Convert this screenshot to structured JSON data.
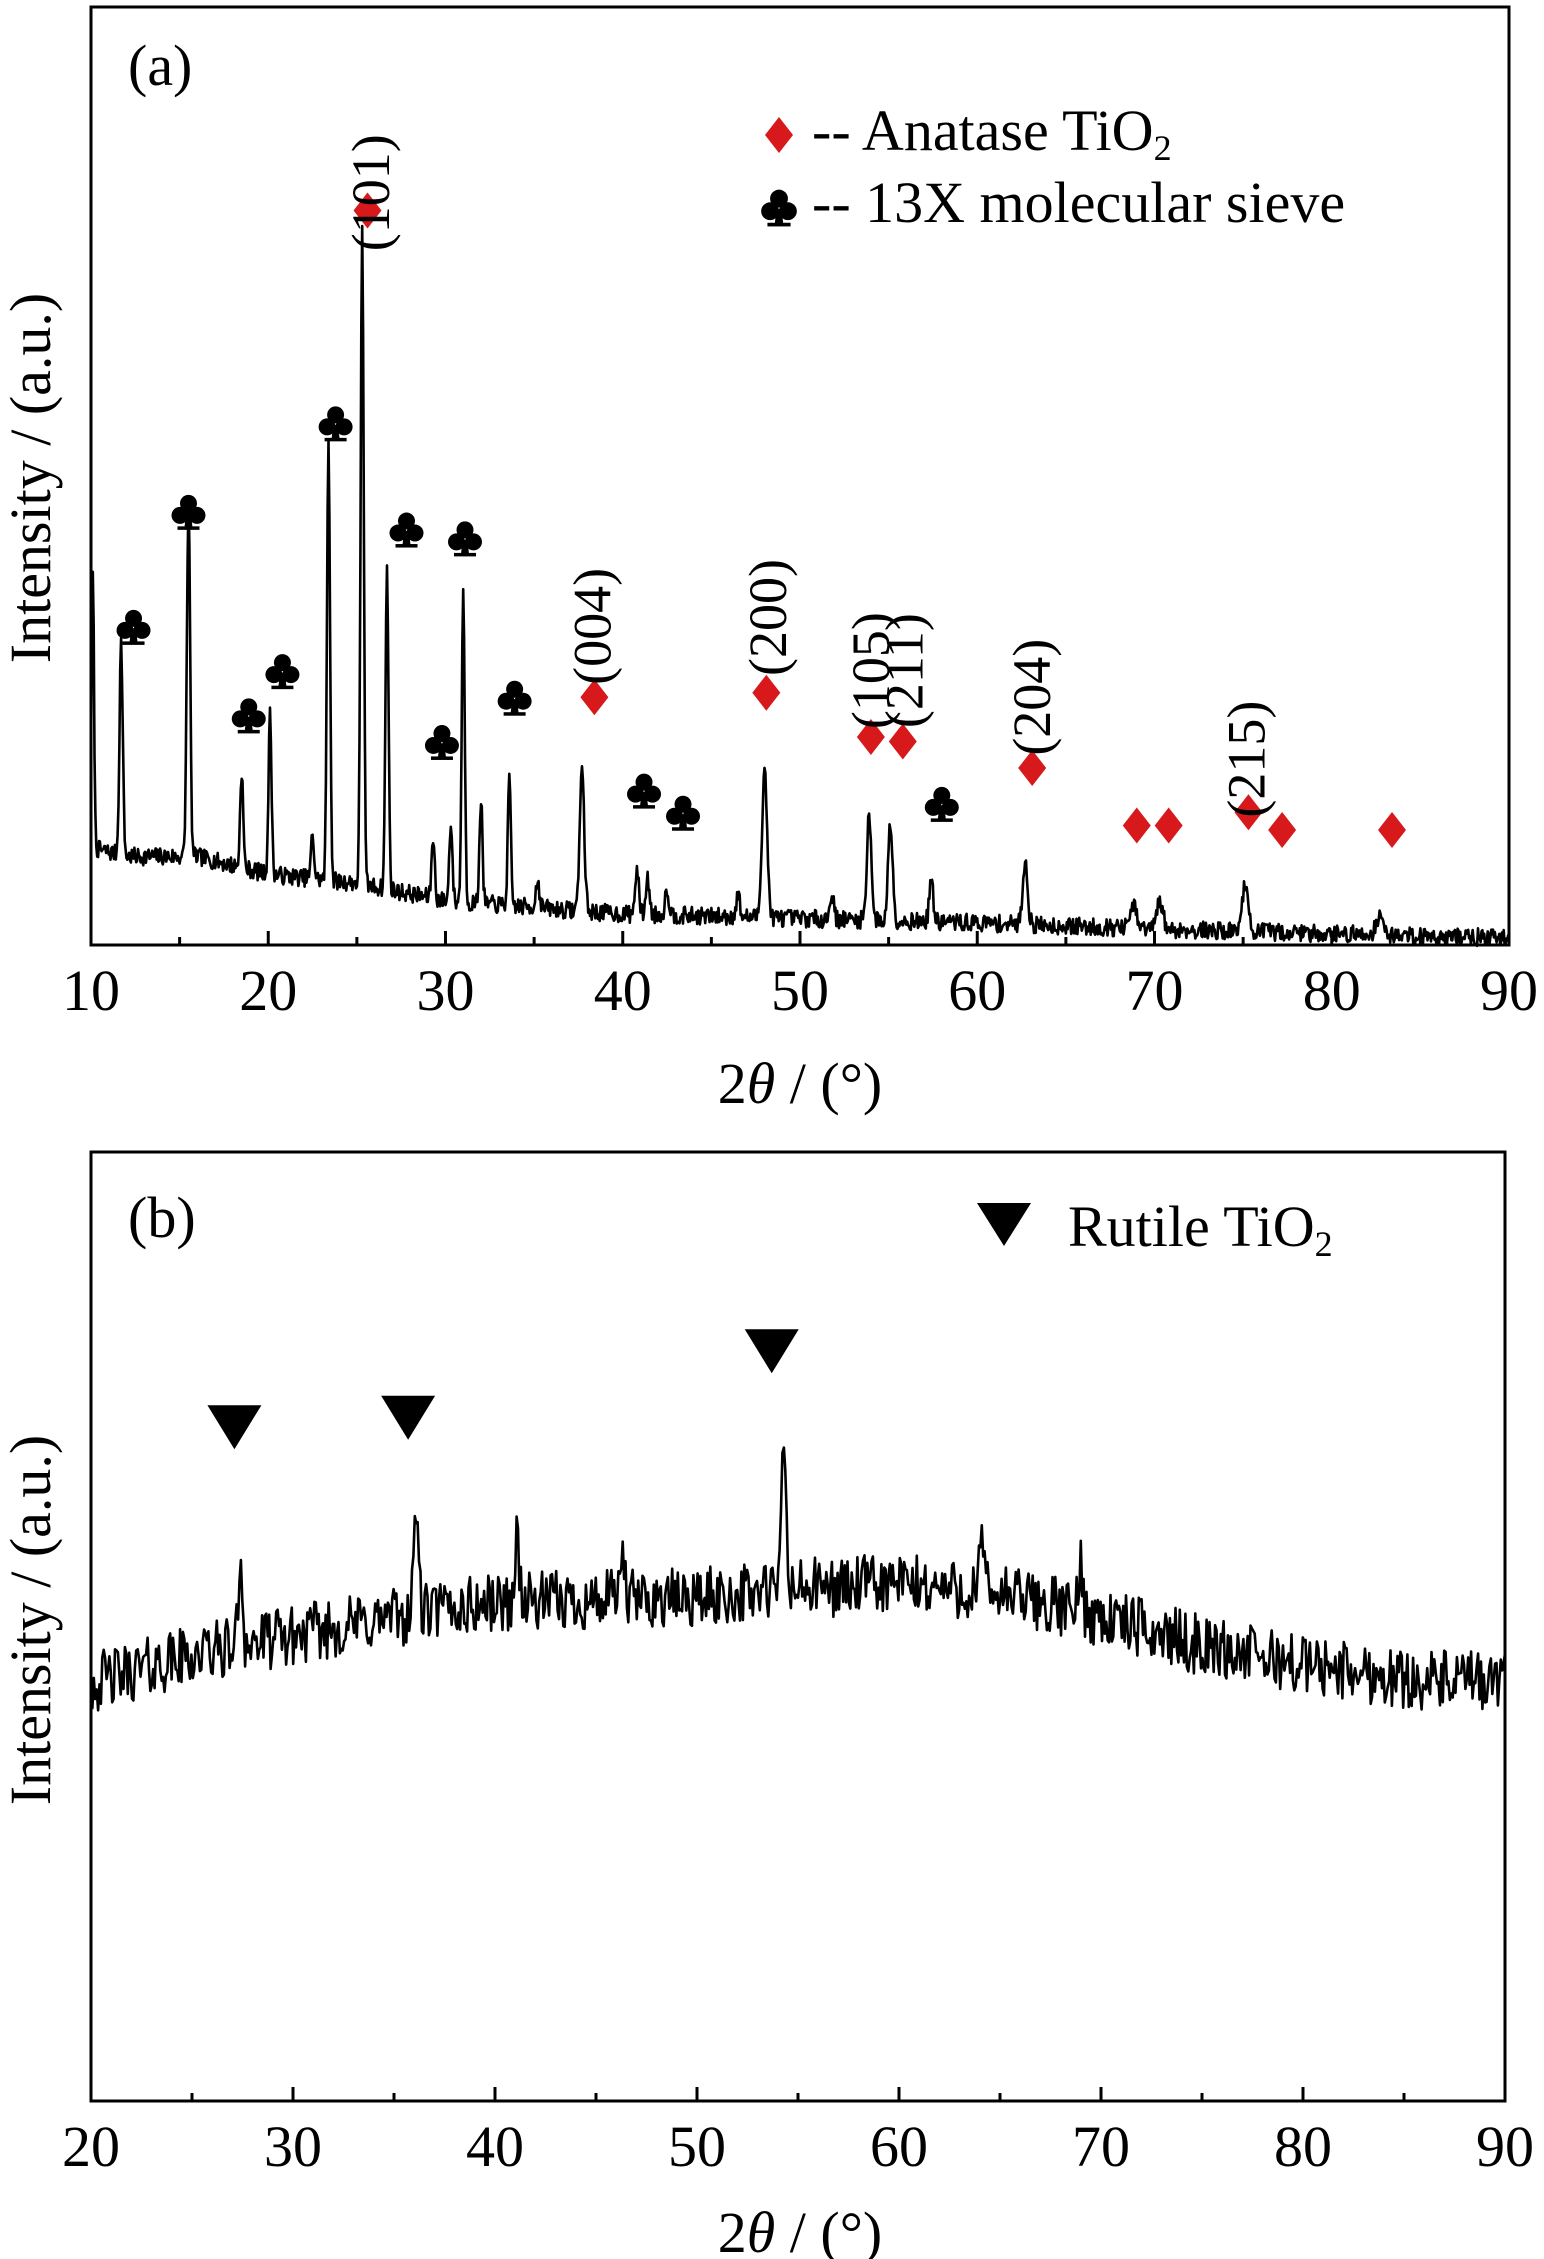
{
  "chart_data": [
    {
      "panel": "(a)",
      "type": "line",
      "xlabel_prefix": "2",
      "xlabel_symbol": "θ",
      "xlabel_suffix": " / (°)",
      "ylabel": "Intensity / (a.u.)",
      "xlim": [
        10,
        90
      ],
      "xticks": [
        10,
        20,
        30,
        40,
        50,
        60,
        70,
        80,
        90
      ],
      "ylim": [
        0,
        100
      ],
      "grid": false,
      "legend_position": "top-right",
      "legend": [
        {
          "marker": "diamond",
          "color": "#d7191c",
          "text_main": "-- Anatase TiO",
          "text_sub": "2"
        },
        {
          "marker": "club",
          "color": "#000000",
          "text_main": "-- 13X molecular sieve",
          "text_sub": ""
        }
      ],
      "baseline": [
        [
          10,
          11
        ],
        [
          12,
          10
        ],
        [
          16,
          10
        ],
        [
          20,
          8
        ],
        [
          25,
          7
        ],
        [
          30,
          5
        ],
        [
          40,
          3.5
        ],
        [
          50,
          3
        ],
        [
          60,
          2.5
        ],
        [
          70,
          1.8
        ],
        [
          80,
          1.3
        ],
        [
          90,
          0.8
        ]
      ],
      "peaks": [
        {
          "x": 10.1,
          "h": 31,
          "w": 0.1
        },
        {
          "x": 11.7,
          "h": 24,
          "w": 0.13
        },
        {
          "x": 15.5,
          "h": 40,
          "w": 0.13
        },
        {
          "x": 18.5,
          "h": 11,
          "w": 0.12
        },
        {
          "x": 20.1,
          "h": 18,
          "w": 0.12
        },
        {
          "x": 22.5,
          "h": 5,
          "w": 0.12
        },
        {
          "x": 23.4,
          "h": 50,
          "w": 0.12
        },
        {
          "x": 25.3,
          "h": 75,
          "w": 0.12
        },
        {
          "x": 26.7,
          "h": 36,
          "w": 0.12
        },
        {
          "x": 29.3,
          "h": 7,
          "w": 0.12
        },
        {
          "x": 30.3,
          "h": 9,
          "w": 0.12
        },
        {
          "x": 31.0,
          "h": 35,
          "w": 0.12
        },
        {
          "x": 32.0,
          "h": 12,
          "w": 0.12
        },
        {
          "x": 33.6,
          "h": 14,
          "w": 0.12
        },
        {
          "x": 35.2,
          "h": 3,
          "w": 0.15
        },
        {
          "x": 37.7,
          "h": 16,
          "w": 0.18
        },
        {
          "x": 40.8,
          "h": 5,
          "w": 0.15
        },
        {
          "x": 41.4,
          "h": 4,
          "w": 0.15
        },
        {
          "x": 42.5,
          "h": 3,
          "w": 0.15
        },
        {
          "x": 46.5,
          "h": 2.5,
          "w": 0.15
        },
        {
          "x": 48.0,
          "h": 17,
          "w": 0.2
        },
        {
          "x": 51.8,
          "h": 3,
          "w": 0.15
        },
        {
          "x": 53.9,
          "h": 12,
          "w": 0.18
        },
        {
          "x": 55.1,
          "h": 11,
          "w": 0.18
        },
        {
          "x": 57.4,
          "h": 5,
          "w": 0.15
        },
        {
          "x": 62.7,
          "h": 7,
          "w": 0.2
        },
        {
          "x": 68.8,
          "h": 2.5,
          "w": 0.25
        },
        {
          "x": 70.3,
          "h": 3,
          "w": 0.25
        },
        {
          "x": 75.1,
          "h": 5,
          "w": 0.25
        },
        {
          "x": 82.7,
          "h": 2,
          "w": 0.3
        }
      ],
      "noise": 1.0,
      "hkl_labels": [
        {
          "text": "(101)",
          "x": 25.8,
          "y": 85
        },
        {
          "text": "(004)",
          "x": 38.3,
          "y": 36
        },
        {
          "text": "(200)",
          "x": 48.2,
          "y": 37
        },
        {
          "text": "(105)",
          "x": 54.0,
          "y": 31
        },
        {
          "text": "(211)",
          "x": 55.9,
          "y": 31
        },
        {
          "text": "(204)",
          "x": 63.1,
          "y": 28
        },
        {
          "text": "(215)",
          "x": 75.2,
          "y": 21
        }
      ],
      "anatase_markers": [
        [
          25.6,
          83
        ],
        [
          38.4,
          28
        ],
        [
          48.1,
          28.5
        ],
        [
          54.0,
          23.5
        ],
        [
          55.8,
          23
        ],
        [
          63.1,
          20
        ],
        [
          69.0,
          13.5
        ],
        [
          70.8,
          13.5
        ],
        [
          75.3,
          15
        ],
        [
          77.2,
          13
        ],
        [
          83.4,
          13
        ]
      ],
      "sieve_markers": [
        [
          12.4,
          36
        ],
        [
          15.5,
          49
        ],
        [
          18.9,
          26
        ],
        [
          20.8,
          31
        ],
        [
          23.8,
          59
        ],
        [
          27.8,
          47
        ],
        [
          29.8,
          23
        ],
        [
          31.1,
          46
        ],
        [
          33.9,
          28
        ],
        [
          41.2,
          17.5
        ],
        [
          43.4,
          15
        ],
        [
          58.0,
          16
        ]
      ]
    },
    {
      "panel": "(b)",
      "type": "line",
      "xlabel_prefix": "2",
      "xlabel_symbol": "θ",
      "xlabel_suffix": " / (°)",
      "ylabel": "Intensity / (a.u.)",
      "xlim": [
        20,
        90
      ],
      "xticks": [
        20,
        30,
        40,
        50,
        60,
        70,
        80,
        90
      ],
      "ylim": [
        0,
        100
      ],
      "grid": false,
      "legend_position": "top-right",
      "legend": [
        {
          "marker": "down-triangle",
          "color": "#000000",
          "text_main": "Rutile TiO",
          "text_sub": "2"
        }
      ],
      "baseline": [
        [
          20,
          44
        ],
        [
          25,
          47
        ],
        [
          30,
          49
        ],
        [
          35,
          51
        ],
        [
          40,
          52.5
        ],
        [
          50,
          53
        ],
        [
          55,
          54
        ],
        [
          60,
          54.5
        ],
        [
          65,
          53.5
        ],
        [
          70,
          51
        ],
        [
          75,
          48
        ],
        [
          80,
          46
        ],
        [
          85,
          44.5
        ],
        [
          90,
          44
        ]
      ],
      "peaks": [
        {
          "x": 27.4,
          "h": 9,
          "w": 0.15
        },
        {
          "x": 36.1,
          "h": 12,
          "w": 0.15
        },
        {
          "x": 41.1,
          "h": 7,
          "w": 0.15
        },
        {
          "x": 46.3,
          "h": 6,
          "w": 0.12
        },
        {
          "x": 54.3,
          "h": 16,
          "w": 0.15
        },
        {
          "x": 64.1,
          "h": 5,
          "w": 0.15
        },
        {
          "x": 69.0,
          "h": 5,
          "w": 0.15
        }
      ],
      "noise": 3.2,
      "rutile_markers": [
        [
          27.1,
          71
        ],
        [
          35.7,
          72
        ],
        [
          53.7,
          79
        ]
      ]
    }
  ]
}
